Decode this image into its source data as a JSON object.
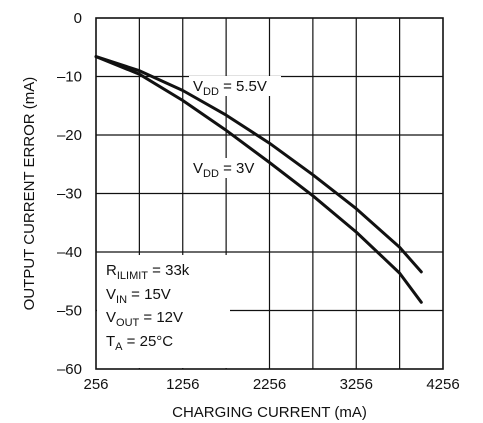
{
  "chart_data": {
    "type": "line",
    "xlabel": "CHARGING CURRENT (mA)",
    "ylabel": "OUTPUT CURRENT ERROR (mA)",
    "xlim": [
      256,
      4256
    ],
    "ylim": [
      -60,
      0
    ],
    "xticks": [
      256,
      1256,
      2256,
      3256,
      4256
    ],
    "xtick_labels": [
      "256",
      "1256",
      "2256",
      "3256",
      "4256"
    ],
    "yticks": [
      0,
      -10,
      -20,
      -30,
      -40,
      -50,
      -60
    ],
    "ytick_labels": [
      "0",
      "–10",
      "–20",
      "–30",
      "–40",
      "–50",
      "–60"
    ],
    "grid": true,
    "series": [
      {
        "label_main": "V",
        "label_sub": "DD",
        "label_rest": " = 5.5V",
        "x": [
          256,
          756,
          1256,
          1756,
          2256,
          2756,
          3256,
          3756,
          4006
        ],
        "y": [
          -6.6,
          -9.0,
          -12.4,
          -16.6,
          -21.4,
          -26.8,
          -32.6,
          -39.2,
          -43.4
        ]
      },
      {
        "label_main": "V",
        "label_sub": "DD",
        "label_rest": " = 3V",
        "x": [
          256,
          756,
          1256,
          1756,
          2256,
          2756,
          3256,
          3756,
          4006
        ],
        "y": [
          -6.6,
          -9.6,
          -14.1,
          -19.2,
          -24.7,
          -30.4,
          -36.6,
          -43.6,
          -48.6
        ]
      }
    ],
    "conditions": [
      {
        "main": "R",
        "sub": "ILIMIT",
        "rest": " = 33k"
      },
      {
        "main": "V",
        "sub": "IN",
        "rest": " = 15V"
      },
      {
        "main": "V",
        "sub": "OUT",
        "rest": " = 12V"
      },
      {
        "main": "T",
        "sub": "A",
        "rest": " = 25°C"
      }
    ]
  }
}
